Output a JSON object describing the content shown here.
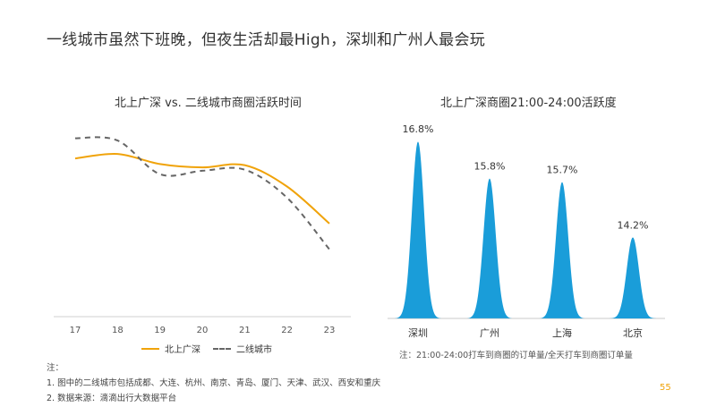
{
  "slide": {
    "title": "一线城市虽然下班晚，但夜生活却最High，深圳和广州人最会玩",
    "page_number": "55"
  },
  "footnotes": {
    "heading": "注：",
    "items": [
      "1.  图中的二线城市包括成都、大连、杭州、南京、青岛、厦门、天津、武汉、西安和重庆",
      "2.  数据来源：滴滴出行大数据平台"
    ]
  },
  "colors": {
    "orange": "#f0a30a",
    "blue": "#1a9dd9",
    "gray": "#666666"
  },
  "chart_data": [
    {
      "type": "line",
      "title": "北上广深 vs. 二线城市商圈活跃时间",
      "x": [
        "17",
        "18",
        "19",
        "20",
        "21",
        "22",
        "23"
      ],
      "xlabel": "",
      "ylabel": "",
      "y_axis_shown": false,
      "grid": false,
      "legend": "bottom",
      "series": [
        {
          "name": "北上广深",
          "style": "solid",
          "color": "#f0a30a",
          "values": [
            0.72,
            0.76,
            0.67,
            0.64,
            0.66,
            0.47,
            0.14
          ]
        },
        {
          "name": "二线城市",
          "style": "dashed",
          "color": "#666666",
          "values": [
            0.9,
            0.88,
            0.58,
            0.61,
            0.62,
            0.37,
            -0.09
          ]
        }
      ]
    },
    {
      "type": "area",
      "title": "北上广深商圈21:00-24:00活跃度",
      "categories": [
        "深圳",
        "广州",
        "上海",
        "北京"
      ],
      "values": [
        16.8,
        15.8,
        15.7,
        14.2
      ],
      "value_labels": [
        "16.8%",
        "15.8%",
        "15.7%",
        "14.2%"
      ],
      "baseline": 12,
      "color": "#1a9dd9",
      "note": "注：21:00-24:00打车到商圈的订单量/全天打车到商圈订单量"
    }
  ]
}
